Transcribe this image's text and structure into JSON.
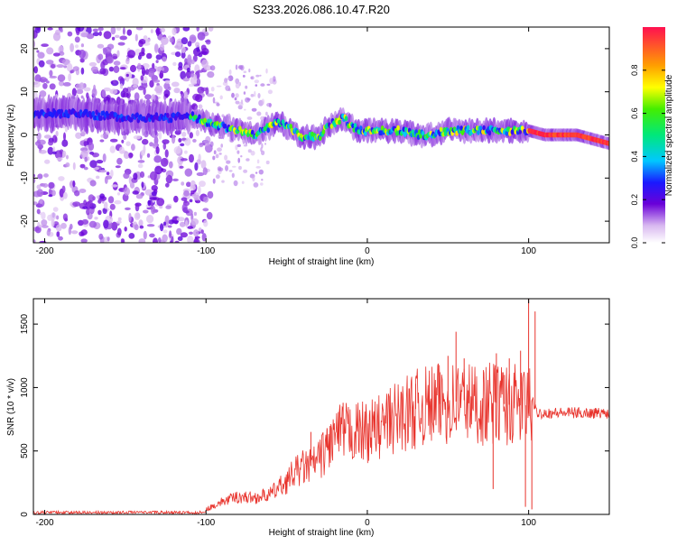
{
  "title": "S233.2026.086.10.47.R20",
  "chart_data": [
    {
      "type": "heatmap",
      "name": "spectrogram",
      "xlabel": "Height of straight line (km)",
      "ylabel": "Frequency (Hz)",
      "xlim": [
        -207,
        150
      ],
      "ylim": [
        -25,
        25
      ],
      "xticks": [
        -200,
        -100,
        0,
        100
      ],
      "xtick_labels": [
        "-200",
        "-100",
        "0",
        "100"
      ],
      "yticks": [
        -20,
        -10,
        0,
        10,
        20
      ],
      "ytick_labels": [
        "-20",
        "-10",
        "0",
        "10",
        "20"
      ],
      "ridge_x": [
        -207,
        -180,
        -150,
        -130,
        -120,
        -110,
        -100,
        -90,
        -80,
        -70,
        -60,
        -55,
        -50,
        -45,
        -40,
        -35,
        -30,
        -25,
        -20,
        -15,
        -10,
        -5,
        0,
        10,
        20,
        30,
        40,
        50,
        60,
        70,
        80,
        90,
        100,
        110,
        120,
        130,
        140,
        150
      ],
      "ridge_freq": [
        5,
        5,
        4,
        4,
        4,
        4.5,
        3,
        2,
        1,
        0,
        2,
        3,
        2,
        1,
        -1,
        0,
        -1,
        2,
        3,
        4,
        2,
        1,
        1,
        1,
        1,
        0,
        0,
        1,
        1,
        1,
        1,
        1,
        1,
        0,
        0,
        0,
        -1,
        -2
      ],
      "colorbar": {
        "label": "Normalized spectral amplitude",
        "range": [
          0,
          1
        ],
        "ticks": [
          0.0,
          0.2,
          0.4,
          0.6,
          0.8
        ],
        "tick_labels": [
          "0.0",
          "0.2",
          "0.4",
          "0.6",
          "0.8"
        ]
      }
    },
    {
      "type": "line",
      "name": "snr",
      "xlabel": "Height of straight line (km)",
      "ylabel": "SNR (10 * v/v)",
      "xlim": [
        -207,
        150
      ],
      "ylim": [
        0,
        1700
      ],
      "xticks": [
        -200,
        -100,
        0,
        100
      ],
      "xtick_labels": [
        "-200",
        "-100",
        "0",
        "100"
      ],
      "yticks": [
        0,
        500,
        1000,
        1500
      ],
      "ytick_labels": [
        "0",
        "500",
        "1000",
        "1500"
      ],
      "color": "#e8332c",
      "envelope_x": [
        -207,
        -150,
        -110,
        -100,
        -90,
        -80,
        -70,
        -60,
        -50,
        -45,
        -40,
        -35,
        -30,
        -20,
        -10,
        0,
        10,
        20,
        30,
        40,
        50,
        60,
        70,
        80,
        90,
        100,
        102,
        105,
        110,
        120,
        130,
        140,
        150
      ],
      "envelope_y": [
        20,
        20,
        20,
        40,
        100,
        140,
        130,
        160,
        260,
        330,
        370,
        380,
        430,
        620,
        650,
        650,
        700,
        780,
        830,
        860,
        880,
        900,
        860,
        880,
        860,
        860,
        900,
        800,
        800,
        800,
        800,
        800,
        800
      ],
      "spikes": [
        {
          "x": -35,
          "y": 650
        },
        {
          "x": -25,
          "y": 680
        },
        {
          "x": -15,
          "y": 880
        },
        {
          "x": 10,
          "y": 780
        },
        {
          "x": 30,
          "y": 1030
        },
        {
          "x": 45,
          "y": 1120
        },
        {
          "x": 50,
          "y": 1250
        },
        {
          "x": 55,
          "y": 1440
        },
        {
          "x": 60,
          "y": 1230
        },
        {
          "x": 80,
          "y": 1270
        },
        {
          "x": 85,
          "y": 1100
        },
        {
          "x": 88,
          "y": 1230
        },
        {
          "x": 95,
          "y": 1290
        },
        {
          "x": 100,
          "y": 1700
        },
        {
          "x": 104,
          "y": 1600
        },
        {
          "x": 78,
          "y": 200
        },
        {
          "x": 98,
          "y": 60
        },
        {
          "x": 102,
          "y": 40
        }
      ]
    }
  ]
}
